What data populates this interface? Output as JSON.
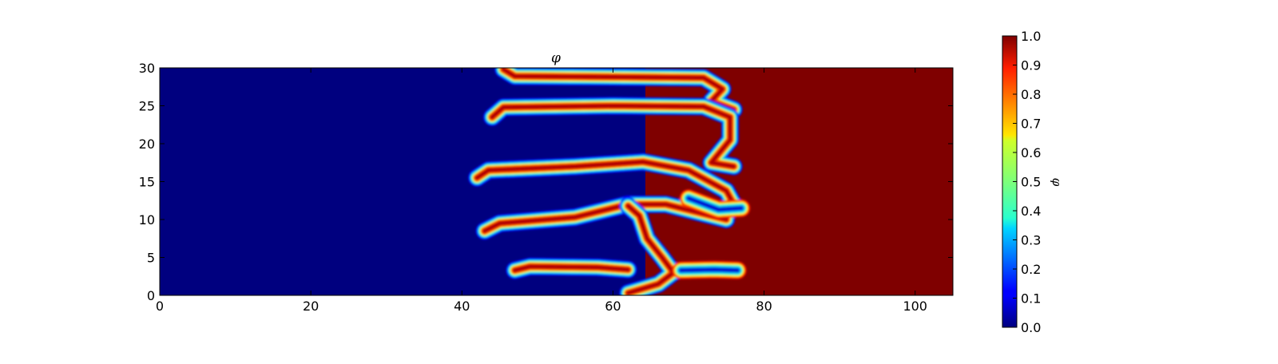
{
  "chart_data": {
    "type": "heatmap",
    "title": "φ",
    "xlabel": "",
    "ylabel": "",
    "xlim": [
      0,
      105
    ],
    "ylim": [
      0,
      30
    ],
    "x_ticks": [
      0,
      20,
      40,
      60,
      80,
      100
    ],
    "y_ticks": [
      0,
      5,
      10,
      15,
      20,
      25,
      30
    ],
    "colormap": "jet",
    "colorbar": {
      "label": "φ",
      "range": [
        0.0,
        1.0
      ],
      "ticks": [
        "0.0",
        "0.1",
        "0.2",
        "0.3",
        "0.4",
        "0.5",
        "0.6",
        "0.7",
        "0.8",
        "0.9",
        "1.0"
      ]
    },
    "field": {
      "description_low": 0.0,
      "description_high": 1.0,
      "background_left_value": 0.0,
      "background_right_value": 1.0,
      "fingers": [
        {
          "x_left": 45,
          "x_right": 73,
          "y": 28.8,
          "x_join": 73,
          "y_join": 27.5,
          "value": 1.0
        },
        {
          "x_left": 44,
          "x_right": 74,
          "y": 24.0,
          "value": 1.0
        },
        {
          "x_left": 42,
          "x_right": 75,
          "y": 15.8,
          "value": 1.0
        },
        {
          "x_left": 43,
          "x_right": 66,
          "y": 8.5,
          "value": 1.0
        },
        {
          "x_left": 47,
          "x_right": 62,
          "y": 3.3,
          "value": 1.0
        }
      ]
    }
  }
}
